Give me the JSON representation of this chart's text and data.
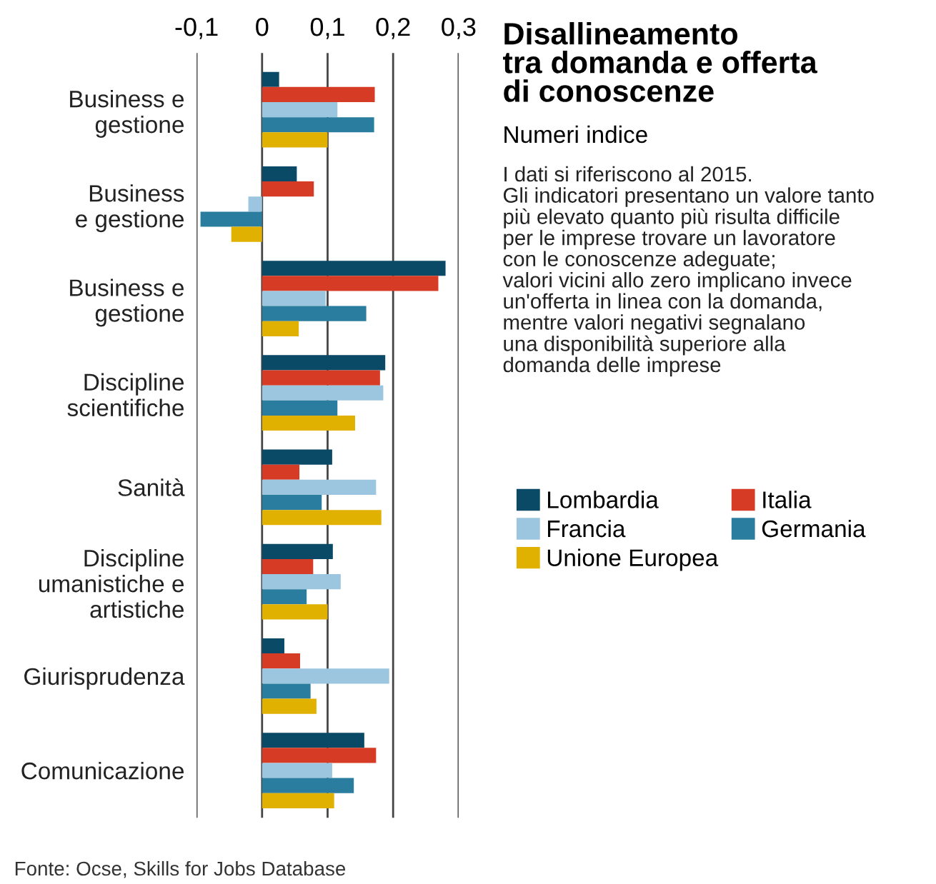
{
  "chart_data": {
    "type": "bar",
    "orientation": "horizontal",
    "title": "Disallineamento\ntra domanda e offerta\ndi conoscenze",
    "subtitle": "Numeri indice",
    "annotations": [
      "I dati si riferiscono al 2015.\nGli indicatori presentano un valore tanto\npiù elevato quanto più risulta difficile\nper le imprese trovare un lavoratore\ncon le conoscenze adeguate;\nvalori vicini allo zero implicano invece\nun'offerta in linea con la domanda,\nmentre valori negativi segnalano\nuna disponibilità superiore alla\ndomanda delle imprese",
      "Fonte: Ocse, Skills for Jobs Database"
    ],
    "categories": [
      "Business e\ngestione",
      "Business\ne gestione",
      "Business e\ngestione",
      "Discipline\nscientifiche",
      "Sanità",
      "Discipline\numanistiche e\nartistiche",
      "Giurisprudenza",
      "Comunicazione"
    ],
    "series": [
      {
        "name": "Lombardia",
        "color": "#0b4a66",
        "values": [
          0.026,
          0.053,
          0.28,
          0.188,
          0.107,
          0.108,
          0.034,
          0.156
        ]
      },
      {
        "name": "Italia",
        "color": "#d63b25",
        "values": [
          0.172,
          0.079,
          0.269,
          0.18,
          0.057,
          0.078,
          0.058,
          0.174
        ]
      },
      {
        "name": "Francia",
        "color": "#9cc6e0",
        "values": [
          0.115,
          -0.021,
          0.097,
          0.185,
          0.174,
          0.12,
          0.194,
          0.107
        ]
      },
      {
        "name": "Germania",
        "color": "#2a7d9e",
        "values": [
          0.171,
          -0.094,
          0.159,
          0.115,
          0.091,
          0.068,
          0.074,
          0.14
        ]
      },
      {
        "name": "Unione Europea",
        "color": "#e0b100",
        "values": [
          0.1,
          -0.047,
          0.056,
          0.142,
          0.182,
          0.1,
          0.083,
          0.11
        ]
      }
    ],
    "xlim": [
      -0.1,
      0.3
    ],
    "xticks": [
      {
        "value": -0.1,
        "label": "-0,1"
      },
      0,
      {
        "value": 0.1,
        "label": "0,1"
      },
      {
        "value": 0.2,
        "label": "0,2"
      },
      {
        "value": 0.3,
        "label": "0,3"
      }
    ],
    "grid": "x",
    "legend": "right"
  }
}
